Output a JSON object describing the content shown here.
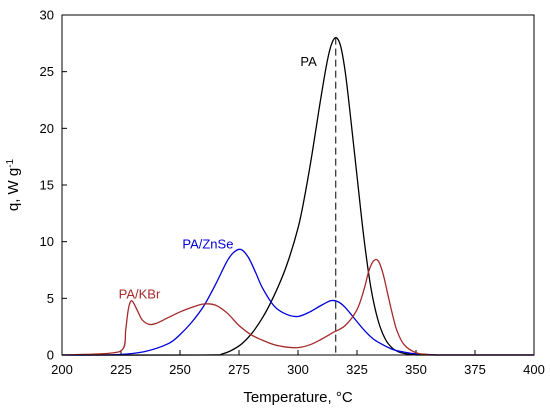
{
  "chart_data": {
    "type": "line",
    "title": "",
    "xlabel": "Temperature, °C",
    "ylabel": "q, W g",
    "ylabel_superscript": "-1",
    "xlim": [
      200,
      400
    ],
    "ylim": [
      0,
      30
    ],
    "xticks": [
      200,
      225,
      250,
      275,
      300,
      325,
      350,
      375,
      400
    ],
    "yticks": [
      0,
      5,
      10,
      15,
      20,
      25,
      30
    ],
    "grid": false,
    "legend": "none",
    "series": [
      {
        "name": "PA",
        "color": "#000000",
        "label_at": [
          301,
          25.5
        ],
        "x": [
          200,
          260,
          268,
          275,
          280,
          285,
          290,
          295,
          300,
          303,
          306,
          309,
          312,
          314,
          316,
          318,
          320,
          322,
          325,
          328,
          331,
          334,
          337,
          340,
          343,
          346,
          350,
          355,
          400
        ],
        "y": [
          0,
          0,
          0.1,
          0.8,
          1.8,
          3.3,
          5.3,
          7.8,
          11.2,
          14.2,
          17.8,
          21.8,
          25.5,
          27.3,
          28.0,
          27.3,
          25.0,
          21.5,
          15.8,
          10.2,
          5.8,
          3.0,
          1.4,
          0.6,
          0.25,
          0.1,
          0.02,
          0,
          0
        ]
      },
      {
        "name": "PA/ZnSe",
        "color": "#0000dd",
        "label_at": [
          251,
          9.4
        ],
        "x": [
          200,
          215,
          225,
          235,
          245,
          250,
          255,
          260,
          265,
          270,
          273,
          276,
          279,
          282,
          285,
          290,
          295,
          300,
          305,
          310,
          314,
          317,
          320,
          324,
          328,
          332,
          336,
          340,
          345,
          350,
          355,
          360,
          370,
          400
        ],
        "y": [
          0,
          0,
          0.05,
          0.3,
          1.0,
          1.8,
          2.9,
          4.3,
          6.2,
          8.3,
          9.1,
          9.3,
          8.6,
          7.3,
          5.9,
          4.3,
          3.6,
          3.4,
          3.8,
          4.4,
          4.8,
          4.7,
          4.2,
          3.2,
          2.2,
          1.4,
          0.9,
          0.5,
          0.25,
          0.1,
          0.04,
          0,
          0,
          0
        ]
      },
      {
        "name": "PA/KBr",
        "color": "#a52a2a",
        "label_at": [
          224,
          5.0
        ],
        "x": [
          200,
          220,
          226,
          227,
          228,
          229,
          230,
          232,
          234,
          237,
          240,
          245,
          250,
          255,
          260,
          265,
          270,
          275,
          280,
          285,
          290,
          295,
          300,
          305,
          310,
          315,
          320,
          325,
          328,
          330,
          332,
          334,
          336,
          338,
          340,
          342,
          345,
          350,
          355,
          360,
          400
        ],
        "y": [
          0,
          0.15,
          0.6,
          2.2,
          3.9,
          4.7,
          4.7,
          3.9,
          3.1,
          2.7,
          2.8,
          3.3,
          3.8,
          4.2,
          4.5,
          4.4,
          3.7,
          2.6,
          1.8,
          1.3,
          0.9,
          0.7,
          0.65,
          0.9,
          1.4,
          2.0,
          2.6,
          4.0,
          5.8,
          7.4,
          8.3,
          8.3,
          7.2,
          5.4,
          3.6,
          2.1,
          0.9,
          0.2,
          0.05,
          0,
          0
        ]
      }
    ],
    "annotations": [
      {
        "type": "vline",
        "x": 316,
        "y_top": 28.0,
        "style": "dashed",
        "color": "#000000"
      }
    ]
  }
}
